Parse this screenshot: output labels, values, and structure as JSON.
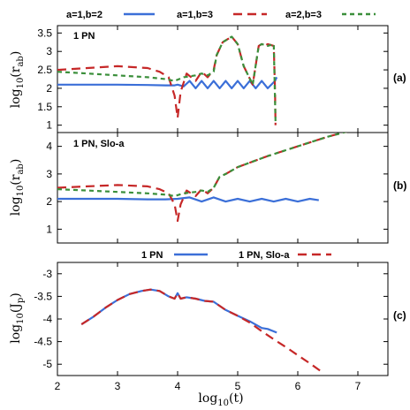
{
  "colors": {
    "series_1": "#3b6fd8",
    "series_2": "#c62828",
    "series_3": "#3b8f3b"
  },
  "legend": {
    "top": [
      "a=1,b=2",
      "a=1,b=3",
      "a=2,b=3"
    ],
    "bottom": [
      "1 PN",
      "1 PN, Slo-a"
    ]
  },
  "x_axis": {
    "label_prefix": "log",
    "label_sub": "10",
    "label_arg": "(t)",
    "ticks": [
      "2",
      "3",
      "4",
      "5",
      "6",
      "7"
    ]
  },
  "chart_data": [
    {
      "type": "line",
      "panel_tag": "(a)",
      "note": "1 PN",
      "ylabel_prefix": "log",
      "ylabel_sub": "10",
      "ylabel_arg": "(r",
      "ylabel_arg_sub": "ab",
      "ylabel_close": ")",
      "xlim": [
        2,
        7.5
      ],
      "ylim": [
        0.8,
        3.7
      ],
      "yticks": [
        "1",
        "1.5",
        "2",
        "2.5",
        "3",
        "3.5"
      ],
      "series": [
        {
          "name": "a=1,b=2",
          "style": "solid",
          "x": [
            2.0,
            2.5,
            3.0,
            3.5,
            3.8,
            3.95,
            4.0,
            4.1,
            4.2,
            4.3,
            4.4,
            4.5,
            4.6,
            4.7,
            4.8,
            4.9,
            5.0,
            5.1,
            5.2,
            5.3,
            5.4,
            5.5,
            5.62,
            5.65
          ],
          "y": [
            2.1,
            2.1,
            2.1,
            2.09,
            2.08,
            2.08,
            2.1,
            2.05,
            2.2,
            2.0,
            2.2,
            2.0,
            2.2,
            2.0,
            2.2,
            2.0,
            2.2,
            2.0,
            2.2,
            2.0,
            2.2,
            2.0,
            2.2,
            2.3
          ]
        },
        {
          "name": "a=1,b=3",
          "style": "dashed",
          "x": [
            2.0,
            2.5,
            3.0,
            3.5,
            3.7,
            3.85,
            3.95,
            4.0,
            4.05,
            4.15,
            4.3,
            4.4,
            4.5,
            4.6,
            4.65,
            4.75,
            4.9,
            5.0,
            5.1,
            5.25,
            5.35,
            5.4,
            5.45,
            5.5,
            5.6,
            5.62,
            5.63
          ],
          "y": [
            2.5,
            2.55,
            2.6,
            2.55,
            2.45,
            2.3,
            1.8,
            1.2,
            1.9,
            2.4,
            2.2,
            2.45,
            2.3,
            2.5,
            2.9,
            3.25,
            3.4,
            3.2,
            2.6,
            2.1,
            3.15,
            3.2,
            3.15,
            3.2,
            3.15,
            2.0,
            1.0
          ]
        },
        {
          "name": "a=2,b=3",
          "style": "dotted",
          "x": [
            2.0,
            2.5,
            3.0,
            3.5,
            3.8,
            3.95,
            4.1,
            4.3,
            4.4,
            4.5,
            4.6,
            4.65,
            4.75,
            4.9,
            5.0,
            5.1,
            5.25,
            5.35,
            5.4,
            5.5,
            5.6,
            5.63
          ],
          "y": [
            2.45,
            2.4,
            2.35,
            2.3,
            2.25,
            2.2,
            2.3,
            2.35,
            2.4,
            2.35,
            2.45,
            2.9,
            3.25,
            3.4,
            3.2,
            2.6,
            2.1,
            3.15,
            3.2,
            3.15,
            3.2,
            1.1
          ]
        }
      ]
    },
    {
      "type": "line",
      "panel_tag": "(b)",
      "note": "1 PN, Slo-a",
      "ylabel_prefix": "log",
      "ylabel_sub": "10",
      "ylabel_arg": "(r",
      "ylabel_arg_sub": "ab",
      "ylabel_close": ")",
      "xlim": [
        2,
        7.5
      ],
      "ylim": [
        0.5,
        4.5
      ],
      "yticks": [
        "1",
        "2",
        "3",
        "4"
      ],
      "series": [
        {
          "name": "a=1,b=2",
          "style": "solid",
          "x": [
            2.0,
            2.5,
            3.0,
            3.5,
            3.8,
            4.0,
            4.2,
            4.4,
            4.6,
            4.8,
            5.0,
            5.2,
            5.4,
            5.6,
            5.8,
            6.0,
            6.2,
            6.35
          ],
          "y": [
            2.1,
            2.1,
            2.1,
            2.08,
            2.08,
            2.1,
            2.15,
            2.0,
            2.15,
            2.0,
            2.1,
            2.0,
            2.1,
            2.0,
            2.1,
            2.0,
            2.1,
            2.05
          ]
        },
        {
          "name": "a=1,b=3",
          "style": "dashed",
          "x": [
            2.0,
            2.5,
            3.0,
            3.5,
            3.7,
            3.85,
            3.95,
            4.0,
            4.05,
            4.15,
            4.3,
            4.4,
            4.5,
            4.6,
            4.7,
            4.8,
            5.0,
            5.5,
            6.0,
            6.5,
            6.85
          ],
          "y": [
            2.5,
            2.55,
            2.6,
            2.55,
            2.45,
            2.3,
            1.9,
            1.3,
            1.9,
            2.4,
            2.2,
            2.45,
            2.3,
            2.5,
            2.9,
            3.0,
            3.25,
            3.65,
            4.0,
            4.35,
            4.55
          ]
        },
        {
          "name": "a=2,b=3",
          "style": "dotted",
          "x": [
            2.0,
            2.5,
            3.0,
            3.5,
            3.8,
            3.95,
            4.1,
            4.3,
            4.4,
            4.5,
            4.6,
            4.7,
            4.8,
            5.0,
            5.5,
            6.0,
            6.5,
            6.85
          ],
          "y": [
            2.45,
            2.4,
            2.35,
            2.3,
            2.25,
            2.2,
            2.3,
            2.35,
            2.4,
            2.35,
            2.5,
            2.9,
            3.0,
            3.25,
            3.65,
            4.0,
            4.35,
            4.55
          ]
        }
      ]
    },
    {
      "type": "line",
      "panel_tag": "(c)",
      "note": "",
      "ylabel_prefix": "log",
      "ylabel_sub": "10",
      "ylabel_arg": "(J",
      "ylabel_arg_sub": "p",
      "ylabel_close": ")",
      "xlim": [
        2,
        7.5
      ],
      "ylim": [
        -5.25,
        -2.75
      ],
      "yticks": [
        "-3",
        "-3.5",
        "-4",
        "-4.5",
        "-5"
      ],
      "series": [
        {
          "name": "1 PN",
          "style": "solid",
          "x": [
            2.4,
            2.6,
            2.8,
            3.0,
            3.2,
            3.4,
            3.55,
            3.7,
            3.85,
            3.95,
            4.0,
            4.05,
            4.15,
            4.3,
            4.45,
            4.6,
            4.8,
            5.0,
            5.2,
            5.4,
            5.5,
            5.65
          ],
          "y": [
            -4.12,
            -3.95,
            -3.75,
            -3.58,
            -3.45,
            -3.38,
            -3.35,
            -3.38,
            -3.5,
            -3.55,
            -3.43,
            -3.55,
            -3.52,
            -3.55,
            -3.6,
            -3.62,
            -3.8,
            -3.93,
            -4.05,
            -4.2,
            -4.22,
            -4.3
          ]
        },
        {
          "name": "1 PN, Slo-a",
          "style": "dashed",
          "x": [
            2.4,
            2.6,
            2.8,
            3.0,
            3.2,
            3.4,
            3.55,
            3.7,
            3.85,
            3.95,
            4.0,
            4.05,
            4.15,
            4.3,
            4.45,
            4.6,
            4.8,
            5.0,
            5.2,
            5.4,
            5.6,
            5.8,
            6.0,
            6.2,
            6.38
          ],
          "y": [
            -4.12,
            -3.95,
            -3.75,
            -3.58,
            -3.45,
            -3.38,
            -3.35,
            -3.38,
            -3.5,
            -3.55,
            -3.43,
            -3.55,
            -3.52,
            -3.55,
            -3.6,
            -3.62,
            -3.8,
            -3.93,
            -4.08,
            -4.27,
            -4.45,
            -4.62,
            -4.8,
            -4.98,
            -5.15
          ]
        }
      ]
    }
  ]
}
